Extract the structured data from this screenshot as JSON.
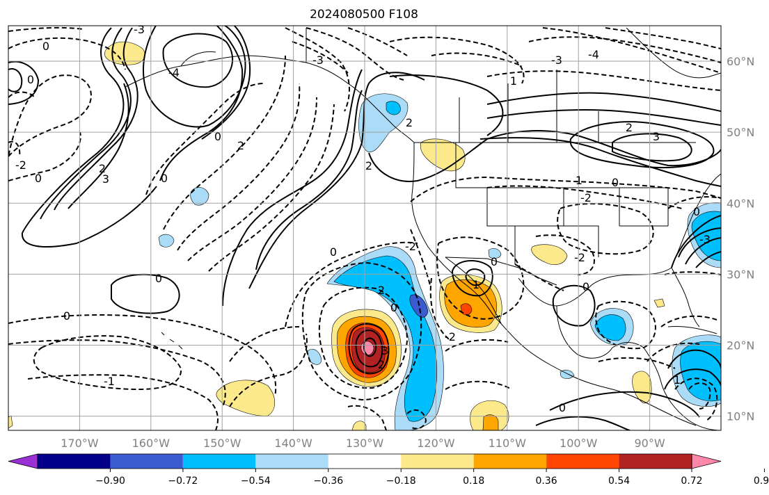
{
  "title": "2024080500 F108",
  "map": {
    "projection": "equirectangular",
    "lon_range": [
      -180,
      -80
    ],
    "lat_range": [
      8,
      65
    ],
    "grid": true,
    "lon_labels": [
      {
        "lon": -170,
        "text": "170°W"
      },
      {
        "lon": -160,
        "text": "160°W"
      },
      {
        "lon": -150,
        "text": "150°W"
      },
      {
        "lon": -140,
        "text": "140°W"
      },
      {
        "lon": -130,
        "text": "130°W"
      },
      {
        "lon": -120,
        "text": "120°W"
      },
      {
        "lon": -110,
        "text": "110°W"
      },
      {
        "lon": -100,
        "text": "100°W"
      },
      {
        "lon": -90,
        "text": "90°W"
      }
    ],
    "lat_labels": [
      {
        "lat": 60,
        "text": "60°N"
      },
      {
        "lat": 50,
        "text": "50°N"
      },
      {
        "lat": 40,
        "text": "40°N"
      },
      {
        "lat": 30,
        "text": "30°N"
      },
      {
        "lat": 20,
        "text": "20°N"
      },
      {
        "lat": 10,
        "text": "10°N"
      }
    ],
    "contour_labels": [
      "0",
      "-1",
      "2",
      "-2",
      "3",
      "-3",
      "-4",
      "1"
    ]
  },
  "colorbar": {
    "levels": [
      "−0.90",
      "−0.72",
      "−0.54",
      "−0.36",
      "−0.18",
      "0.18",
      "0.36",
      "0.54",
      "0.72",
      "0.90"
    ],
    "colors": [
      "#9b30d4",
      "#00008b",
      "#3b5bd1",
      "#00bfff",
      "#abdcf7",
      "#ffffff",
      "#fbe98c",
      "#ffa500",
      "#ff4500",
      "#b22222",
      "#ff88aa"
    ],
    "extend": "both"
  },
  "colors": {
    "gridline": "#a0a0a0",
    "axis_label": "#808080",
    "contour": "#000000"
  }
}
